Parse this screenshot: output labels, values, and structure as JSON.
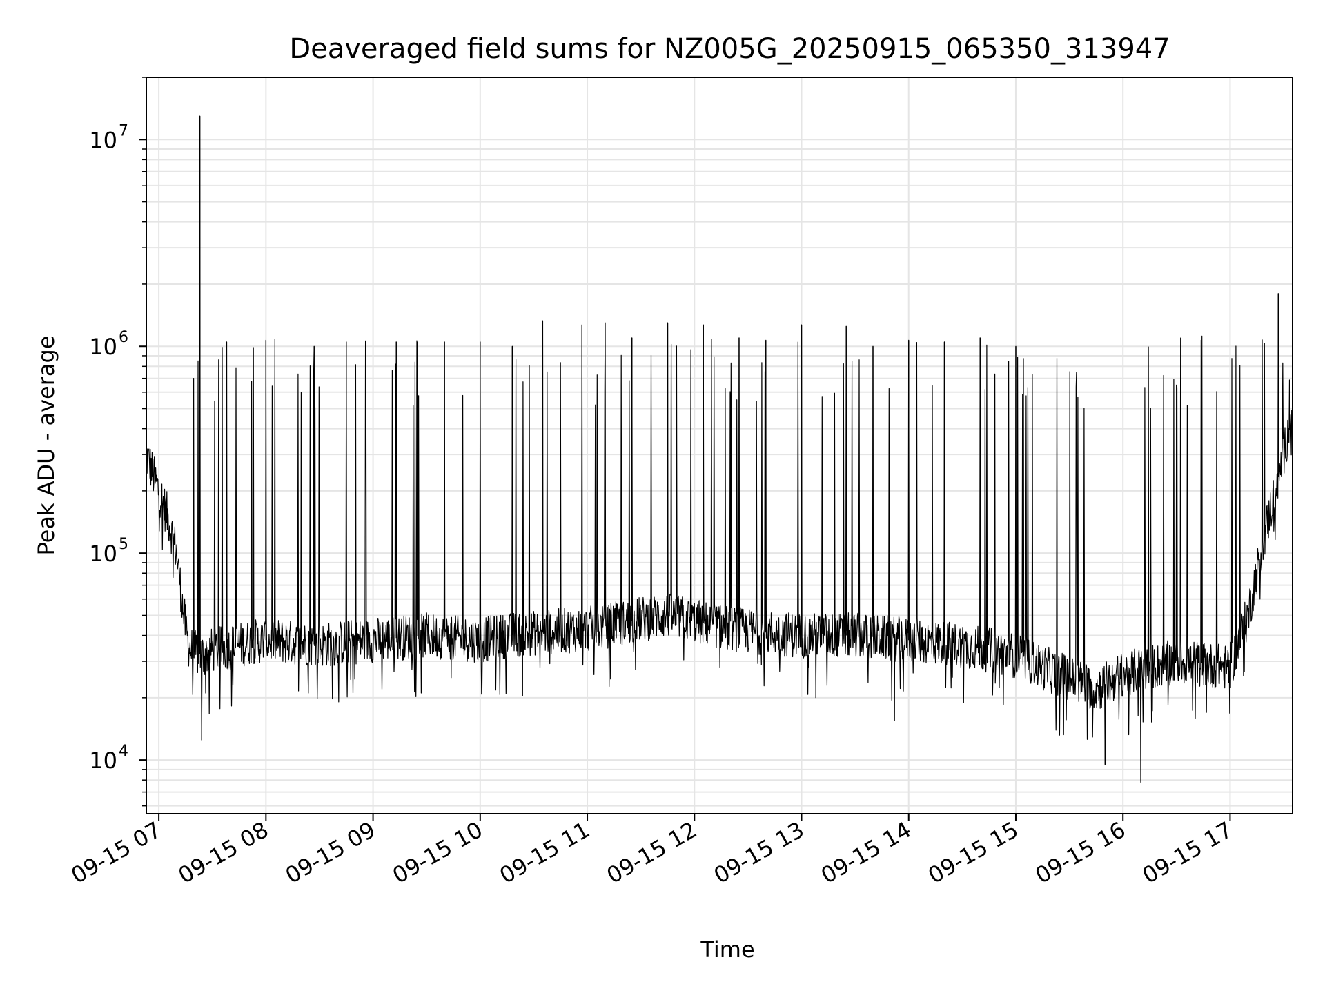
{
  "chart_data": {
    "type": "line",
    "title": "Deaveraged field sums for NZ005G_20250915_065350_313947",
    "xlabel": "Time",
    "ylabel": "Peak ADU - average",
    "x_scale": "time",
    "y_scale": "log",
    "xlim": [
      "09-15 06:53",
      "09-15 17:35"
    ],
    "ylim": [
      5500,
      20000000
    ],
    "x_ticks": [
      "09-15 07",
      "09-15 08",
      "09-15 09",
      "09-15 10",
      "09-15 11",
      "09-15 12",
      "09-15 13",
      "09-15 14",
      "09-15 15",
      "09-15 16",
      "09-15 17"
    ],
    "y_ticks": [
      {
        "base": "10",
        "exp": "4",
        "value": 10000
      },
      {
        "base": "10",
        "exp": "5",
        "value": 100000
      },
      {
        "base": "10",
        "exp": "6",
        "value": 1000000
      },
      {
        "base": "10",
        "exp": "7",
        "value": 10000000
      }
    ],
    "grid": true,
    "line_color": "#000000",
    "grid_color": "#e5e5e5",
    "series": [
      {
        "x": [
          "09-15 06:53",
          "09-15 07:00",
          "09-15 07:05",
          "09-15 07:10",
          "09-15 07:12",
          "09-15 07:14",
          "09-15 07:17",
          "09-15 07:20",
          "09-15 07:25",
          "09-15 07:30",
          "09-15 07:40",
          "09-15 07:50",
          "09-15 08:00",
          "09-15 08:15",
          "09-15 08:30",
          "09-15 08:45",
          "09-15 09:00",
          "09-15 09:15",
          "09-15 09:30",
          "09-15 09:45",
          "09-15 10:00",
          "09-15 10:15",
          "09-15 10:30",
          "09-15 10:45",
          "09-15 11:00",
          "09-15 11:15",
          "09-15 11:30",
          "09-15 11:45",
          "09-15 12:00",
          "09-15 12:15",
          "09-15 12:30",
          "09-15 12:45",
          "09-15 13:00",
          "09-15 13:15",
          "09-15 13:30",
          "09-15 13:45",
          "09-15 14:00",
          "09-15 14:15",
          "09-15 14:30",
          "09-15 14:45",
          "09-15 15:00",
          "09-15 15:15",
          "09-15 15:30",
          "09-15 15:45",
          "09-15 16:00",
          "09-15 16:15",
          "09-15 16:30",
          "09-15 16:45",
          "09-15 17:00",
          "09-15 17:10",
          "09-15 17:20",
          "09-15 17:30",
          "09-15 17:35"
        ],
        "y": [
          300000,
          200000,
          150000,
          100000,
          70000,
          50000,
          35000,
          33000,
          32000,
          34000,
          35000,
          37000,
          38000,
          37000,
          36000,
          37000,
          38000,
          39000,
          40000,
          39000,
          38000,
          40000,
          41000,
          42000,
          43000,
          45000,
          48000,
          50000,
          47000,
          44000,
          42000,
          41000,
          40000,
          40000,
          40000,
          39000,
          38000,
          37000,
          36000,
          34000,
          32000,
          28000,
          25000,
          22000,
          26000,
          28000,
          30000,
          29000,
          28000,
          50000,
          130000,
          300000,
          500000
        ]
      }
    ],
    "spikes": [
      {
        "x": "09-15 07:23",
        "y": 13000000
      },
      {
        "x": "09-15 07:24",
        "y": 12500
      },
      {
        "x": "09-15 07:38",
        "y": 1050000
      },
      {
        "x": "09-15 08:00",
        "y": 1070000
      },
      {
        "x": "09-15 08:27",
        "y": 1000000
      },
      {
        "x": "09-15 08:45",
        "y": 1050000
      },
      {
        "x": "09-15 09:13",
        "y": 1050000
      },
      {
        "x": "09-15 09:25",
        "y": 1050000
      },
      {
        "x": "09-15 09:40",
        "y": 1050000
      },
      {
        "x": "09-15 10:00",
        "y": 1050000
      },
      {
        "x": "09-15 10:18",
        "y": 1000000
      },
      {
        "x": "09-15 10:35",
        "y": 1330000
      },
      {
        "x": "09-15 10:57",
        "y": 1270000
      },
      {
        "x": "09-15 11:10",
        "y": 1300000
      },
      {
        "x": "09-15 11:25",
        "y": 1100000
      },
      {
        "x": "09-15 11:45",
        "y": 1300000
      },
      {
        "x": "09-15 12:05",
        "y": 1270000
      },
      {
        "x": "09-15 12:25",
        "y": 1100000
      },
      {
        "x": "09-15 12:40",
        "y": 1070000
      },
      {
        "x": "09-15 13:00",
        "y": 1270000
      },
      {
        "x": "09-15 13:08",
        "y": 20000
      },
      {
        "x": "09-15 13:25",
        "y": 1250000
      },
      {
        "x": "09-15 13:40",
        "y": 1000000
      },
      {
        "x": "09-15 13:52",
        "y": 15500
      },
      {
        "x": "09-15 14:00",
        "y": 1070000
      },
      {
        "x": "09-15 14:20",
        "y": 1050000
      },
      {
        "x": "09-15 14:40",
        "y": 1100000
      },
      {
        "x": "09-15 15:00",
        "y": 1000000
      },
      {
        "x": "09-15 15:50",
        "y": 9500
      },
      {
        "x": "09-15 16:10",
        "y": 7800
      },
      {
        "x": "09-15 16:30",
        "y": 650000
      },
      {
        "x": "09-15 17:27",
        "y": 1800000
      }
    ]
  }
}
